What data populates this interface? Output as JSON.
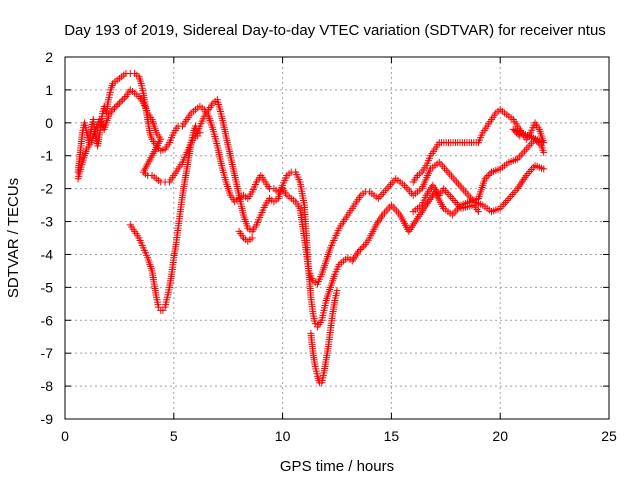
{
  "chart_data": {
    "type": "scatter",
    "title": "Day 193 of 2019, Sidereal Day-to-day VTEC variation (SDTVAR) for receiver ntus",
    "xlabel": "GPS time / hours",
    "ylabel": "SDTVAR / TECUs",
    "xlim": [
      0,
      25
    ],
    "ylim": [
      -9,
      2
    ],
    "xticks": [
      0,
      5,
      10,
      15,
      20,
      25
    ],
    "yticks": [
      2,
      1,
      0,
      -1,
      -2,
      -3,
      -4,
      -5,
      -6,
      -7,
      -8,
      -9
    ],
    "grid": true,
    "legend": "none",
    "marker": "+",
    "color": "#ff0000",
    "series": [
      {
        "points": [
          [
            0.6,
            -1.5
          ],
          [
            0.7,
            -0.9
          ],
          [
            0.8,
            -0.3
          ],
          [
            0.9,
            0.0
          ],
          [
            1.0,
            -0.3
          ],
          [
            1.1,
            -0.6
          ],
          [
            1.2,
            -0.2
          ],
          [
            1.3,
            0.1
          ],
          [
            1.4,
            -0.4
          ],
          [
            1.5,
            -0.7
          ],
          [
            1.6,
            -0.3
          ],
          [
            1.7,
            0.2
          ],
          [
            1.8,
            0.5
          ],
          [
            1.9,
            0.3
          ],
          [
            2.0,
            0.7
          ],
          [
            2.1,
            1.0
          ],
          [
            2.2,
            1.2
          ],
          [
            2.4,
            1.3
          ],
          [
            2.6,
            1.4
          ],
          [
            2.8,
            1.5
          ],
          [
            3.0,
            1.5
          ],
          [
            3.2,
            1.5
          ],
          [
            3.4,
            1.4
          ],
          [
            3.5,
            1.2
          ],
          [
            3.6,
            0.9
          ],
          [
            3.7,
            0.5
          ],
          [
            3.8,
            0.1
          ],
          [
            3.9,
            -0.3
          ],
          [
            4.0,
            -0.5
          ],
          [
            4.2,
            -0.7
          ],
          [
            4.4,
            -0.85
          ],
          [
            4.6,
            -0.8
          ],
          [
            4.8,
            -0.6
          ],
          [
            5.0,
            -0.3
          ],
          [
            5.2,
            -0.1
          ],
          [
            5.4,
            -0.1
          ],
          [
            5.6,
            0.1
          ],
          [
            5.8,
            0.3
          ],
          [
            6.0,
            0.4
          ],
          [
            6.2,
            0.5
          ],
          [
            6.4,
            0.4
          ],
          [
            6.6,
            0.2
          ],
          [
            6.8,
            -0.2
          ],
          [
            7.0,
            -0.7
          ],
          [
            7.2,
            -1.3
          ],
          [
            7.4,
            -1.8
          ],
          [
            7.6,
            -2.2
          ],
          [
            7.8,
            -2.4
          ],
          [
            8.0,
            -2.3
          ],
          [
            8.2,
            -2.2
          ],
          [
            8.4,
            -2.3
          ],
          [
            8.6,
            -2.1
          ],
          [
            8.8,
            -1.8
          ],
          [
            9.0,
            -1.6
          ],
          [
            9.2,
            -1.8
          ],
          [
            9.4,
            -2.0
          ],
          [
            9.6,
            -2.0
          ],
          [
            9.8,
            -2.1
          ],
          [
            10.0,
            -2.0
          ],
          [
            10.2,
            -2.2
          ],
          [
            10.4,
            -2.3
          ],
          [
            10.6,
            -2.4
          ],
          [
            10.8,
            -2.6
          ],
          [
            11.0,
            -3.5
          ],
          [
            11.1,
            -4.0
          ],
          [
            11.2,
            -4.5
          ],
          [
            11.4,
            -4.8
          ],
          [
            11.6,
            -4.9
          ],
          [
            11.8,
            -4.6
          ],
          [
            12.0,
            -4.2
          ],
          [
            12.2,
            -3.8
          ],
          [
            12.4,
            -3.5
          ],
          [
            12.6,
            -3.2
          ],
          [
            12.8,
            -3.0
          ],
          [
            13.0,
            -2.8
          ],
          [
            13.2,
            -2.6
          ],
          [
            13.4,
            -2.4
          ],
          [
            13.6,
            -2.2
          ],
          [
            13.8,
            -2.1
          ],
          [
            14.0,
            -2.1
          ],
          [
            14.4,
            -2.3
          ],
          [
            14.8,
            -2.0
          ],
          [
            15.2,
            -1.7
          ],
          [
            15.6,
            -1.9
          ],
          [
            16.0,
            -2.2
          ],
          [
            16.4,
            -2.0
          ],
          [
            16.8,
            -1.4
          ],
          [
            17.2,
            -1.2
          ],
          [
            17.6,
            -1.5
          ],
          [
            18.0,
            -1.8
          ],
          [
            18.4,
            -2.1
          ],
          [
            18.8,
            -2.4
          ],
          [
            19.2,
            -2.5
          ],
          [
            19.6,
            -2.7
          ],
          [
            20.0,
            -2.6
          ],
          [
            20.4,
            -2.3
          ],
          [
            20.8,
            -2.0
          ],
          [
            21.2,
            -1.6
          ],
          [
            21.6,
            -1.3
          ],
          [
            22.0,
            -1.4
          ]
        ]
      },
      {
        "points": [
          [
            0.6,
            -1.7
          ],
          [
            0.8,
            -1.2
          ],
          [
            1.0,
            -0.8
          ],
          [
            1.2,
            -0.6
          ],
          [
            1.4,
            -0.2
          ],
          [
            1.6,
            0.1
          ],
          [
            1.8,
            -0.2
          ],
          [
            2.0,
            0.2
          ],
          [
            2.2,
            0.4
          ],
          [
            2.5,
            0.6
          ],
          [
            2.8,
            0.8
          ],
          [
            3.0,
            1.0
          ],
          [
            3.2,
            0.9
          ],
          [
            3.4,
            0.8
          ],
          [
            3.6,
            0.6
          ],
          [
            3.8,
            0.3
          ],
          [
            4.0,
            0.1
          ],
          [
            4.2,
            -0.3
          ],
          [
            4.4,
            -0.5
          ],
          [
            3.6,
            -1.5
          ],
          [
            3.8,
            -1.6
          ],
          [
            4.0,
            -1.6
          ],
          [
            4.2,
            -1.7
          ],
          [
            4.4,
            -1.8
          ],
          [
            4.6,
            -1.8
          ],
          [
            4.8,
            -1.8
          ],
          [
            5.0,
            -1.6
          ],
          [
            5.2,
            -1.4
          ],
          [
            5.4,
            -1.2
          ],
          [
            5.6,
            -0.9
          ],
          [
            5.8,
            -0.6
          ],
          [
            6.0,
            -0.4
          ],
          [
            6.2,
            -0.1
          ],
          [
            6.4,
            0.2
          ],
          [
            6.6,
            0.4
          ],
          [
            6.8,
            0.6
          ],
          [
            7.0,
            0.7
          ],
          [
            7.2,
            0.2
          ],
          [
            7.4,
            -0.4
          ],
          [
            7.6,
            -1.0
          ],
          [
            7.8,
            -1.6
          ],
          [
            8.0,
            -2.2
          ],
          [
            8.2,
            -2.8
          ],
          [
            8.4,
            -3.2
          ],
          [
            8.6,
            -3.3
          ],
          [
            8.8,
            -3.1
          ],
          [
            9.0,
            -2.8
          ],
          [
            9.2,
            -2.5
          ],
          [
            9.4,
            -2.3
          ],
          [
            9.6,
            -2.4
          ],
          [
            9.8,
            -2.3
          ],
          [
            10.0,
            -1.9
          ],
          [
            10.2,
            -1.6
          ],
          [
            10.4,
            -1.5
          ],
          [
            10.6,
            -1.5
          ],
          [
            10.8,
            -1.8
          ],
          [
            11.0,
            -2.5
          ],
          [
            11.1,
            -3.5
          ],
          [
            11.2,
            -4.5
          ],
          [
            11.3,
            -5.3
          ],
          [
            11.4,
            -5.8
          ],
          [
            11.5,
            -6.1
          ],
          [
            11.6,
            -6.2
          ],
          [
            11.8,
            -6.0
          ],
          [
            11.9,
            -5.7
          ],
          [
            12.0,
            -5.4
          ],
          [
            12.2,
            -5.0
          ],
          [
            12.4,
            -4.6
          ],
          [
            12.6,
            -4.3
          ],
          [
            12.8,
            -4.2
          ],
          [
            13.0,
            -4.1
          ],
          [
            13.2,
            -4.2
          ],
          [
            13.5,
            -3.9
          ],
          [
            13.8,
            -3.7
          ],
          [
            14.0,
            -3.5
          ],
          [
            14.3,
            -3.1
          ],
          [
            14.6,
            -2.8
          ],
          [
            15.0,
            -2.5
          ],
          [
            15.4,
            -2.8
          ],
          [
            15.8,
            -3.3
          ],
          [
            16.2,
            -2.9
          ],
          [
            16.6,
            -2.5
          ],
          [
            17.0,
            -2.1
          ],
          [
            17.4,
            -2.6
          ],
          [
            17.8,
            -2.8
          ],
          [
            18.2,
            -2.5
          ],
          [
            18.6,
            -2.4
          ],
          [
            19.0,
            -2.3
          ],
          [
            19.3,
            -1.7
          ],
          [
            19.6,
            -1.5
          ],
          [
            20.0,
            -1.4
          ],
          [
            20.4,
            -1.2
          ],
          [
            20.8,
            -1.1
          ],
          [
            21.2,
            -0.8
          ],
          [
            21.6,
            -0.5
          ],
          [
            21.9,
            -0.7
          ],
          [
            22.0,
            -0.9
          ]
        ]
      },
      {
        "points": [
          [
            3.0,
            -3.1
          ],
          [
            3.2,
            -3.3
          ],
          [
            3.4,
            -3.5
          ],
          [
            3.6,
            -3.8
          ],
          [
            3.8,
            -4.1
          ],
          [
            4.0,
            -4.5
          ],
          [
            4.1,
            -4.9
          ],
          [
            4.2,
            -5.3
          ],
          [
            4.3,
            -5.6
          ],
          [
            4.4,
            -5.7
          ],
          [
            4.5,
            -5.7
          ],
          [
            4.6,
            -5.6
          ],
          [
            4.7,
            -5.3
          ],
          [
            4.8,
            -5.0
          ],
          [
            4.9,
            -4.6
          ],
          [
            5.0,
            -4.1
          ],
          [
            5.1,
            -3.7
          ],
          [
            5.2,
            -3.2
          ],
          [
            5.3,
            -2.7
          ],
          [
            5.4,
            -2.2
          ],
          [
            5.5,
            -1.8
          ],
          [
            5.6,
            -1.4
          ],
          [
            5.7,
            -1.0
          ],
          [
            5.8,
            -0.6
          ],
          [
            5.9,
            -0.3
          ],
          [
            6.0,
            -0.1
          ],
          [
            6.1,
            -0.4
          ],
          [
            6.2,
            -0.3
          ],
          [
            8.0,
            -3.3
          ],
          [
            8.2,
            -3.5
          ],
          [
            8.4,
            -3.6
          ],
          [
            8.6,
            -3.5
          ],
          [
            11.3,
            -6.4
          ],
          [
            11.4,
            -7.0
          ],
          [
            11.5,
            -7.4
          ],
          [
            11.6,
            -7.7
          ],
          [
            11.7,
            -7.9
          ],
          [
            11.8,
            -7.9
          ],
          [
            11.9,
            -7.6
          ],
          [
            12.0,
            -7.2
          ],
          [
            12.1,
            -6.8
          ],
          [
            12.2,
            -6.3
          ],
          [
            12.3,
            -5.8
          ],
          [
            12.4,
            -5.4
          ],
          [
            12.5,
            -5.1
          ],
          [
            16.0,
            -1.8
          ],
          [
            16.2,
            -1.6
          ],
          [
            16.4,
            -1.5
          ],
          [
            16.6,
            -1.3
          ],
          [
            16.8,
            -1.0
          ],
          [
            17.0,
            -0.8
          ],
          [
            17.2,
            -0.6
          ],
          [
            19.0,
            -0.6
          ],
          [
            19.2,
            -0.3
          ],
          [
            19.4,
            -0.1
          ],
          [
            19.6,
            0.1
          ],
          [
            19.8,
            0.3
          ],
          [
            20.0,
            0.4
          ],
          [
            20.2,
            0.3
          ],
          [
            20.4,
            0.2
          ],
          [
            20.6,
            0.1
          ],
          [
            20.8,
            -0.1
          ],
          [
            21.0,
            -0.3
          ],
          [
            21.2,
            -0.5
          ],
          [
            21.4,
            -0.3
          ],
          [
            21.6,
            0.0
          ],
          [
            21.8,
            -0.2
          ],
          [
            22.0,
            -0.6
          ],
          [
            20.6,
            -0.2
          ],
          [
            20.9,
            -0.4
          ],
          [
            19.0,
            -2.7
          ],
          [
            18.8,
            -2.5
          ],
          [
            18.2,
            -2.6
          ],
          [
            17.8,
            -2.3
          ],
          [
            17.4,
            -2.0
          ],
          [
            17.2,
            -2.2
          ],
          [
            16.9,
            -1.9
          ],
          [
            16.6,
            -2.2
          ],
          [
            16.4,
            -2.5
          ],
          [
            16.0,
            -2.7
          ]
        ]
      }
    ]
  }
}
